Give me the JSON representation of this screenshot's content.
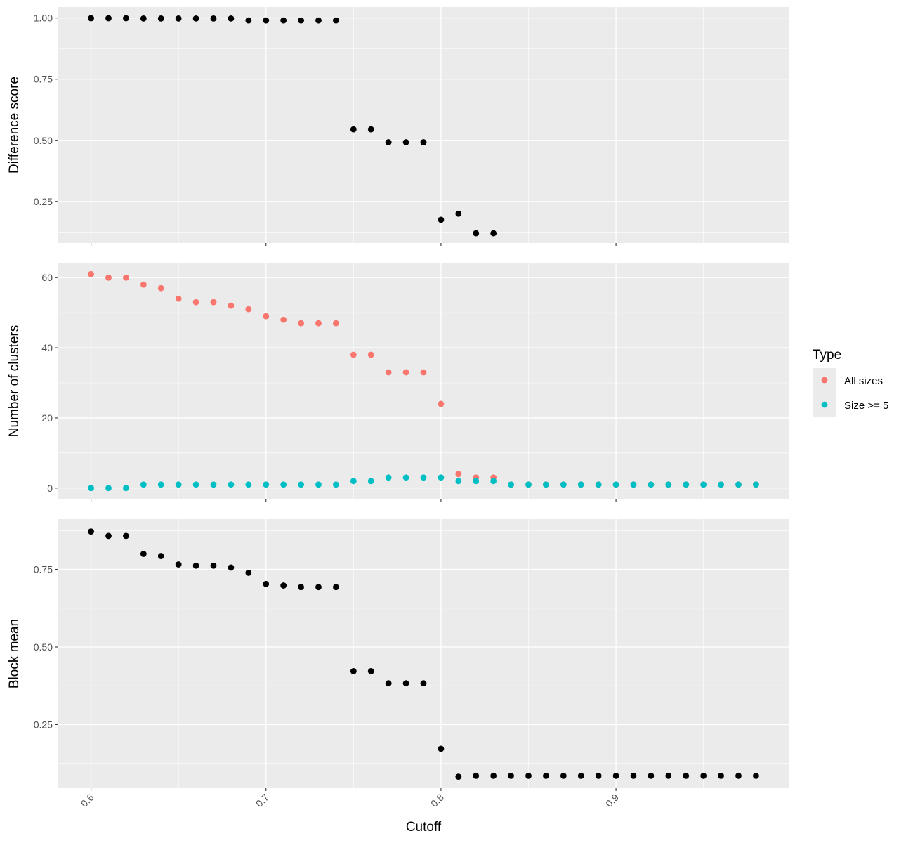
{
  "chart_data": {
    "type": "scatter",
    "xlabel": "Cutoff",
    "x_ticks": [
      "0.6",
      "0.7",
      "0.8",
      "0.9"
    ],
    "x_tick_values": [
      0.6,
      0.7,
      0.8,
      0.9
    ],
    "xlim": [
      0.5813,
      0.9987
    ],
    "legend": {
      "title": "Type",
      "position": "right",
      "entries": [
        {
          "name": "All sizes",
          "color": "#F8766D"
        },
        {
          "name": "Size >= 5",
          "color": "#00BFC4"
        }
      ]
    },
    "panels": [
      {
        "id": "difference",
        "ylabel": "Difference score",
        "ylim": [
          0.08,
          1.045
        ],
        "y_ticks": [
          "0.25",
          "0.50",
          "0.75",
          "1.00"
        ],
        "y_tick_values": [
          0.25,
          0.5,
          0.75,
          1.0
        ],
        "series": [
          {
            "color": "#000000",
            "x": [
              0.6,
              0.61,
              0.62,
              0.63,
              0.64,
              0.65,
              0.66,
              0.67,
              0.68,
              0.69,
              0.7,
              0.71,
              0.72,
              0.73,
              0.74,
              0.75,
              0.76,
              0.77,
              0.78,
              0.79,
              0.8,
              0.81,
              0.82,
              0.83
            ],
            "y": [
              0.999,
              0.999,
              0.999,
              0.998,
              0.998,
              0.998,
              0.998,
              0.998,
              0.998,
              0.99,
              0.99,
              0.99,
              0.99,
              0.99,
              0.99,
              0.545,
              0.545,
              0.492,
              0.492,
              0.492,
              0.175,
              0.2,
              0.12,
              0.12
            ]
          }
        ]
      },
      {
        "id": "clusters",
        "ylabel": "Number of clusters",
        "ylim": [
          -3.05,
          64.05
        ],
        "y_ticks": [
          "0",
          "20",
          "40",
          "60"
        ],
        "y_tick_values": [
          0,
          20,
          40,
          60
        ],
        "series": [
          {
            "name": "All sizes",
            "color": "#F8766D",
            "x": [
              0.6,
              0.61,
              0.62,
              0.63,
              0.64,
              0.65,
              0.66,
              0.67,
              0.68,
              0.69,
              0.7,
              0.71,
              0.72,
              0.73,
              0.74,
              0.75,
              0.76,
              0.77,
              0.78,
              0.79,
              0.8,
              0.81,
              0.82,
              0.83,
              0.84,
              0.85,
              0.86,
              0.87,
              0.88,
              0.89,
              0.9,
              0.91,
              0.92,
              0.93,
              0.94,
              0.95,
              0.96,
              0.97,
              0.98
            ],
            "y": [
              61,
              60,
              60,
              58,
              57,
              54,
              53,
              53,
              52,
              51,
              49,
              48,
              47,
              47,
              47,
              38,
              38,
              33,
              33,
              33,
              24,
              4,
              3,
              3,
              1,
              1,
              1,
              1,
              1,
              1,
              1,
              1,
              1,
              1,
              1,
              1,
              1,
              1,
              1
            ]
          },
          {
            "name": "Size >= 5",
            "color": "#00BFC4",
            "x": [
              0.6,
              0.61,
              0.62,
              0.63,
              0.64,
              0.65,
              0.66,
              0.67,
              0.68,
              0.69,
              0.7,
              0.71,
              0.72,
              0.73,
              0.74,
              0.75,
              0.76,
              0.77,
              0.78,
              0.79,
              0.8,
              0.81,
              0.82,
              0.83,
              0.84,
              0.85,
              0.86,
              0.87,
              0.88,
              0.89,
              0.9,
              0.91,
              0.92,
              0.93,
              0.94,
              0.95,
              0.96,
              0.97,
              0.98
            ],
            "y": [
              0,
              0,
              0,
              1,
              1,
              1,
              1,
              1,
              1,
              1,
              1,
              1,
              1,
              1,
              1,
              2,
              2,
              3,
              3,
              3,
              3,
              2,
              2,
              2,
              1,
              1,
              1,
              1,
              1,
              1,
              1,
              1,
              1,
              1,
              1,
              1,
              1,
              1,
              1
            ]
          }
        ]
      },
      {
        "id": "blockmean",
        "ylabel": "Block mean",
        "ylim": [
          0.045,
          0.912
        ],
        "y_ticks": [
          "0.25",
          "0.50",
          "0.75"
        ],
        "y_tick_values": [
          0.25,
          0.5,
          0.75
        ],
        "series": [
          {
            "color": "#000000",
            "x": [
              0.6,
              0.61,
              0.62,
              0.63,
              0.64,
              0.65,
              0.66,
              0.67,
              0.68,
              0.69,
              0.7,
              0.71,
              0.72,
              0.73,
              0.74,
              0.75,
              0.76,
              0.77,
              0.78,
              0.79,
              0.8,
              0.81,
              0.82,
              0.83,
              0.84,
              0.85,
              0.86,
              0.87,
              0.88,
              0.89,
              0.9,
              0.91,
              0.92,
              0.93,
              0.94,
              0.95,
              0.96,
              0.97,
              0.98
            ],
            "y": [
              0.872,
              0.858,
              0.858,
              0.8,
              0.793,
              0.766,
              0.762,
              0.762,
              0.756,
              0.739,
              0.703,
              0.698,
              0.693,
              0.693,
              0.693,
              0.422,
              0.422,
              0.383,
              0.383,
              0.383,
              0.172,
              0.082,
              0.085,
              0.085,
              0.085,
              0.085,
              0.085,
              0.085,
              0.085,
              0.085,
              0.085,
              0.085,
              0.085,
              0.085,
              0.085,
              0.085,
              0.085,
              0.085,
              0.085
            ]
          }
        ]
      }
    ]
  }
}
